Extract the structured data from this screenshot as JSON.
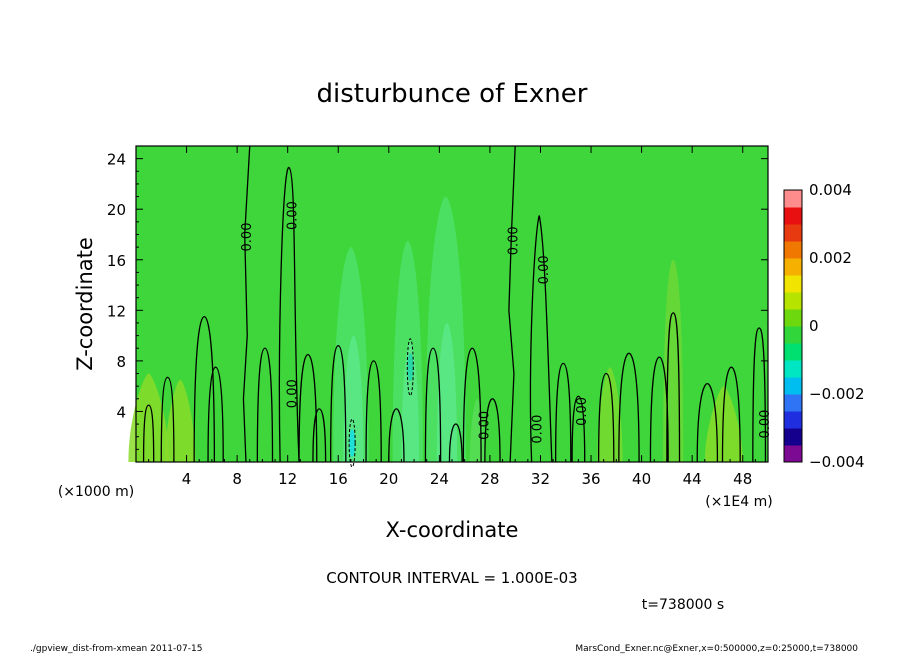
{
  "chart_data": {
    "type": "heatmap",
    "title": "disturbunce of Exner",
    "xlabel": "X-coordinate",
    "ylabel": "Z-coordinate",
    "x_unit_left": "(×1000 m)",
    "x_unit_right": "(×1E4 m)",
    "x_range": [
      0,
      50
    ],
    "y_range": [
      0,
      25
    ],
    "x_ticks": [
      4,
      8,
      12,
      16,
      20,
      24,
      28,
      32,
      36,
      40,
      44,
      48
    ],
    "y_ticks": [
      4,
      8,
      12,
      16,
      20,
      24
    ],
    "colorbar": {
      "range": [
        -0.004,
        0.004
      ],
      "tick_labels": [
        "0.004",
        "0.002",
        "0",
        "−0.002",
        "−0.004"
      ],
      "tick_values": [
        0.004,
        0.002,
        0,
        -0.002,
        -0.004
      ],
      "colors": [
        "#7d0a92",
        "#14008c",
        "#1f2fe0",
        "#2f74f4",
        "#00bff0",
        "#00e6c2",
        "#00e070",
        "#30d63a",
        "#6ed80e",
        "#b6e400",
        "#f0e400",
        "#f6b000",
        "#f07800",
        "#e83a10",
        "#e81010",
        "#ff8c8c"
      ]
    },
    "contour_labels": [
      {
        "text": "0.00",
        "x": 8.7,
        "z": 17.8
      },
      {
        "text": "0.00",
        "x": 12.3,
        "z": 19.5
      },
      {
        "text": "0.00",
        "x": 12.3,
        "z": 5.4
      },
      {
        "text": "0.00",
        "x": 27.5,
        "z": 2.9
      },
      {
        "text": "0.00",
        "x": 29.8,
        "z": 17.5
      },
      {
        "text": "0.00",
        "x": 31.7,
        "z": 2.6
      },
      {
        "text": "0.00",
        "x": 32.2,
        "z": 15.2
      },
      {
        "text": "0.00",
        "x": 35.2,
        "z": 4.0
      },
      {
        "text": "0.00",
        "x": 49.7,
        "z": 3.0
      }
    ],
    "contour_interval": "CONTOUR INTERVAL = 1.000E-03",
    "time_label": "t=738000 s"
  },
  "footer": {
    "left": "./gpview_dist-from-xmean  2011-07-15",
    "right": "MarsCond_Exner.nc@Exner,x=0:500000,z=0:25000,t=738000"
  }
}
